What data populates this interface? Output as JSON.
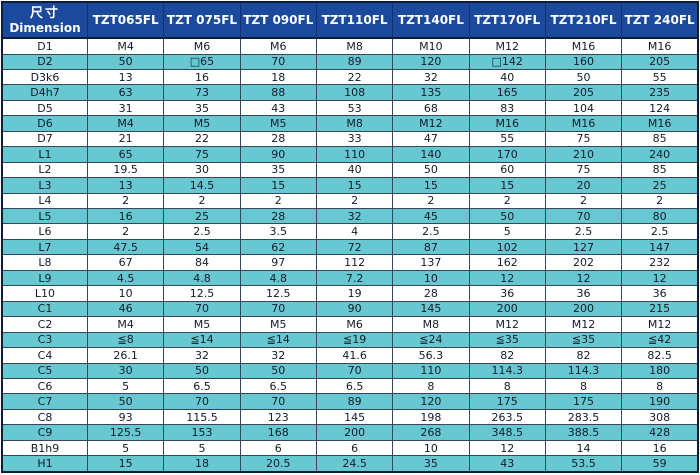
{
  "colors": {
    "header_bg": "#1b4a9c",
    "header_border": "#10306e",
    "header_text": "#ffffff",
    "row_bg": "#ffffff",
    "row_alt_bg": "#68c8d2",
    "grid_border": "#39455a",
    "outer_border": "#0f1d38",
    "body_text": "#141c2a"
  },
  "table": {
    "corner": {
      "zh": "尺寸",
      "en": "Dimension"
    },
    "columns": [
      "TZT065FL",
      "TZT 075FL",
      "TZT 090FL",
      "TZT110FL",
      "TZT140FL",
      "TZT170FL",
      "TZT210FL",
      "TZT 240FL"
    ],
    "rows": [
      {
        "label": "D1",
        "values": [
          "M4",
          "M6",
          "M6",
          "M8",
          "M10",
          "M12",
          "M16",
          "M16"
        ]
      },
      {
        "label": "D2",
        "values": [
          "50",
          "□65",
          "70",
          "89",
          "120",
          "□142",
          "160",
          "205"
        ]
      },
      {
        "label": "D3k6",
        "values": [
          "13",
          "16",
          "18",
          "22",
          "32",
          "40",
          "50",
          "55"
        ]
      },
      {
        "label": "D4h7",
        "values": [
          "63",
          "73",
          "88",
          "108",
          "135",
          "165",
          "205",
          "235"
        ]
      },
      {
        "label": "D5",
        "values": [
          "31",
          "35",
          "43",
          "53",
          "68",
          "83",
          "104",
          "124"
        ]
      },
      {
        "label": "D6",
        "values": [
          "M4",
          "M5",
          "M5",
          "M8",
          "M12",
          "M16",
          "M16",
          "M16"
        ]
      },
      {
        "label": "D7",
        "values": [
          "21",
          "22",
          "28",
          "33",
          "47",
          "55",
          "75",
          "85"
        ]
      },
      {
        "label": "L1",
        "values": [
          "65",
          "75",
          "90",
          "110",
          "140",
          "170",
          "210",
          "240"
        ]
      },
      {
        "label": "L2",
        "values": [
          "19.5",
          "30",
          "35",
          "40",
          "50",
          "60",
          "75",
          "85"
        ]
      },
      {
        "label": "L3",
        "values": [
          "13",
          "14.5",
          "15",
          "15",
          "15",
          "15",
          "20",
          "25"
        ]
      },
      {
        "label": "L4",
        "values": [
          "2",
          "2",
          "2",
          "2",
          "2",
          "2",
          "2",
          "2"
        ]
      },
      {
        "label": "L5",
        "values": [
          "16",
          "25",
          "28",
          "32",
          "45",
          "50",
          "70",
          "80"
        ]
      },
      {
        "label": "L6",
        "values": [
          "2",
          "2.5",
          "3.5",
          "4",
          "2.5",
          "5",
          "2.5",
          "2.5"
        ]
      },
      {
        "label": "L7",
        "values": [
          "47.5",
          "54",
          "62",
          "72",
          "87",
          "102",
          "127",
          "147"
        ]
      },
      {
        "label": "L8",
        "values": [
          "67",
          "84",
          "97",
          "112",
          "137",
          "162",
          "202",
          "232"
        ]
      },
      {
        "label": "L9",
        "values": [
          "4.5",
          "4.8",
          "4.8",
          "7.2",
          "10",
          "12",
          "12",
          "12"
        ]
      },
      {
        "label": "L10",
        "values": [
          "10",
          "12.5",
          "12.5",
          "19",
          "28",
          "36",
          "36",
          "36"
        ]
      },
      {
        "label": "C1",
        "values": [
          "46",
          "70",
          "70",
          "90",
          "145",
          "200",
          "200",
          "215"
        ]
      },
      {
        "label": "C2",
        "values": [
          "M4",
          "M5",
          "M5",
          "M6",
          "M8",
          "M12",
          "M12",
          "M12"
        ]
      },
      {
        "label": "C3",
        "values": [
          "≦8",
          "≦14",
          "≦14",
          "≦19",
          "≦24",
          "≦35",
          "≦35",
          "≦42"
        ]
      },
      {
        "label": "C4",
        "values": [
          "26.1",
          "32",
          "32",
          "41.6",
          "56.3",
          "82",
          "82",
          "82.5"
        ]
      },
      {
        "label": "C5",
        "values": [
          "30",
          "50",
          "50",
          "70",
          "110",
          "114.3",
          "114.3",
          "180"
        ]
      },
      {
        "label": "C6",
        "values": [
          "5",
          "6.5",
          "6.5",
          "6.5",
          "8",
          "8",
          "8",
          "8"
        ]
      },
      {
        "label": "C7",
        "values": [
          "50",
          "70",
          "70",
          "89",
          "120",
          "175",
          "175",
          "190"
        ]
      },
      {
        "label": "C8",
        "values": [
          "93",
          "115.5",
          "123",
          "145",
          "198",
          "263.5",
          "283.5",
          "308"
        ]
      },
      {
        "label": "C9",
        "values": [
          "125.5",
          "153",
          "168",
          "200",
          "268",
          "348.5",
          "388.5",
          "428"
        ]
      },
      {
        "label": "B1h9",
        "values": [
          "5",
          "5",
          "6",
          "6",
          "10",
          "12",
          "14",
          "16"
        ]
      },
      {
        "label": "H1",
        "values": [
          "15",
          "18",
          "20.5",
          "24.5",
          "35",
          "43",
          "53.5",
          "59"
        ]
      }
    ]
  }
}
